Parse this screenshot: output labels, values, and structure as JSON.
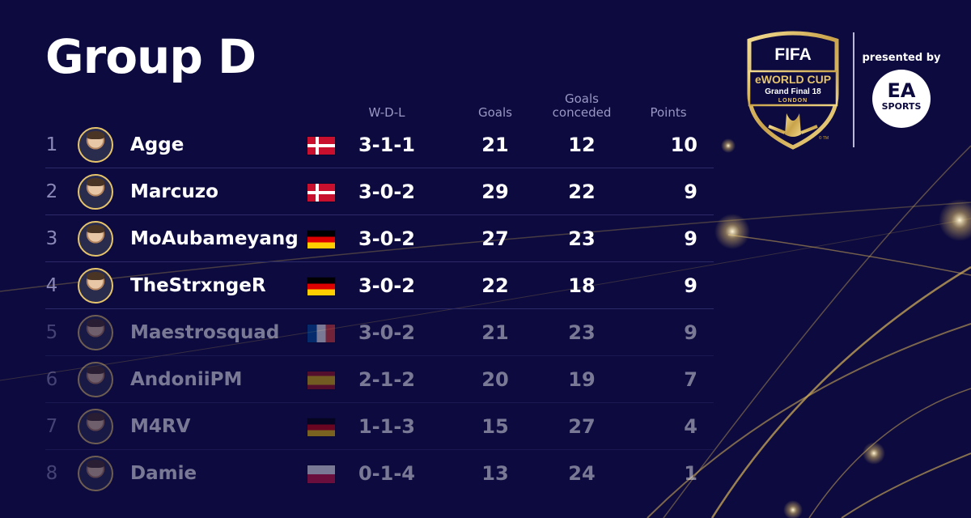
{
  "title": "Group D",
  "columns": {
    "record": "W-D-L",
    "goals": "Goals",
    "conceded_line1": "Goals",
    "conceded_line2": "conceded",
    "points": "Points"
  },
  "rows": [
    {
      "rank": "1",
      "name": "Agge",
      "flag": "denmark-flag",
      "record": "3-1-1",
      "goals": "21",
      "conceded": "12",
      "points": "10"
    },
    {
      "rank": "2",
      "name": "Marcuzo",
      "flag": "denmark-flag",
      "record": "3-0-2",
      "goals": "29",
      "conceded": "22",
      "points": "9"
    },
    {
      "rank": "3",
      "name": "MoAubameyang",
      "flag": "germany-flag",
      "record": "3-0-2",
      "goals": "27",
      "conceded": "23",
      "points": "9"
    },
    {
      "rank": "4",
      "name": "TheStrxngeR",
      "flag": "germany-flag",
      "record": "3-0-2",
      "goals": "22",
      "conceded": "18",
      "points": "9"
    },
    {
      "rank": "5",
      "name": "Maestrosquad",
      "flag": "france-flag",
      "record": "3-0-2",
      "goals": "21",
      "conceded": "23",
      "points": "9"
    },
    {
      "rank": "6",
      "name": "AndoniiPM",
      "flag": "spain-flag",
      "record": "2-1-2",
      "goals": "20",
      "conceded": "19",
      "points": "7"
    },
    {
      "rank": "7",
      "name": "M4RV",
      "flag": "germany-flag",
      "record": "1-1-3",
      "goals": "15",
      "conceded": "27",
      "points": "4"
    },
    {
      "rank": "8",
      "name": "Damie",
      "flag": "poland-flag",
      "record": "0-1-4",
      "goals": "13",
      "conceded": "24",
      "points": "1"
    }
  ],
  "logo": {
    "brand": "FIFA",
    "event": "eWORLD CUP",
    "edition": "Grand Final 18",
    "city": "LONDON",
    "mark": "© TM"
  },
  "sponsor": {
    "presented_by": "presented by",
    "name": "EA",
    "sub": "SPORTS"
  },
  "colors": {
    "background": "#0c0a3e",
    "accent_gold": "#e6c46b",
    "header_text": "#9a97c4"
  }
}
